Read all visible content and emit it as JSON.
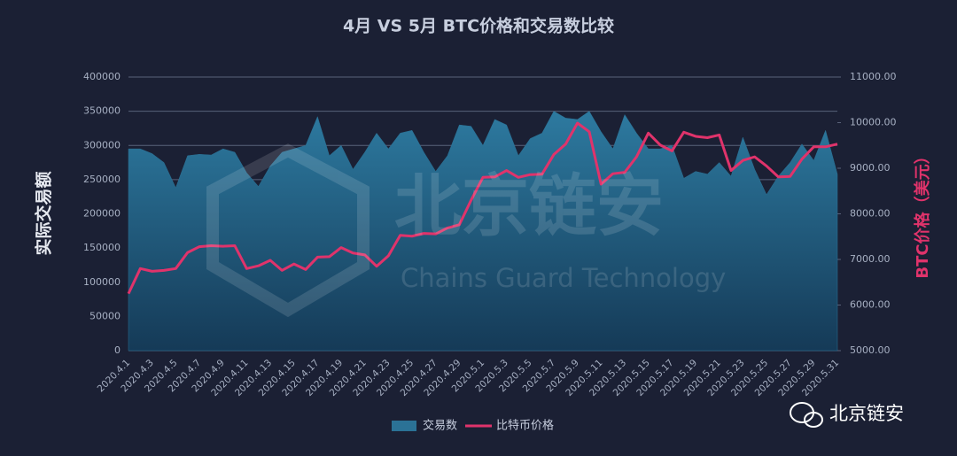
{
  "chart_data": {
    "type": "combo",
    "title": "4月 VS 5月 BTC价格和交易数比较",
    "y_label": "实际交易额",
    "y2_label": "BTC价格（美元）",
    "categories": [
      "2020.4.1",
      null,
      "2020.4.3",
      null,
      "2020.4.5",
      null,
      "2020.4.7",
      null,
      "2020.4.9",
      null,
      "2020.4.11",
      null,
      "2020.4.13",
      null,
      "2020.4.15",
      null,
      "2020.4.17",
      null,
      "2020.4.19",
      null,
      "2020.4.21",
      null,
      "2020.4.23",
      null,
      "2020.4.25",
      null,
      "2020.4.27",
      null,
      "2020.4.29",
      null,
      "2020.5.1",
      null,
      "2020.5.3",
      null,
      "2020.5.5",
      null,
      "2020.5.7",
      null,
      "2020.5.9",
      null,
      "2020.5.11",
      null,
      "2020.5.13",
      null,
      "2020.5.15",
      null,
      "2020.5.17",
      null,
      "2020.5.19",
      null,
      "2020.5.21",
      null,
      "2020.5.23",
      null,
      "2020.5.25",
      null,
      "2020.5.27",
      null,
      "2020.5.29",
      null,
      "2020.5.31"
    ],
    "series": [
      {
        "name": "交易数",
        "type": "area",
        "color": "#2b7296",
        "values": [
          295000,
          295000,
          288000,
          275000,
          238000,
          285000,
          287000,
          286000,
          295000,
          290000,
          260000,
          240000,
          270000,
          290000,
          295000,
          300000,
          342000,
          285000,
          300000,
          265000,
          290000,
          318000,
          295000,
          318000,
          322000,
          290000,
          262000,
          285000,
          330000,
          328000,
          300000,
          338000,
          330000,
          285000,
          310000,
          318000,
          350000,
          340000,
          338000,
          350000,
          320000,
          295000,
          345000,
          318000,
          295000,
          295000,
          300000,
          252000,
          262000,
          258000,
          275000,
          255000,
          312000,
          265000,
          228000,
          255000,
          275000,
          302000,
          278000,
          322000,
          258000
        ]
      },
      {
        "name": "比特币价格",
        "type": "line",
        "axis": "y2",
        "color": "#e0336b",
        "values": [
          6250,
          6800,
          6740,
          6760,
          6800,
          7150,
          7280,
          7300,
          7290,
          7300,
          6800,
          6860,
          6980,
          6760,
          6900,
          6780,
          7050,
          7060,
          7260,
          7140,
          7100,
          6850,
          7080,
          7530,
          7510,
          7570,
          7560,
          7690,
          7760,
          8300,
          8800,
          8810,
          8950,
          8800,
          8860,
          8870,
          9300,
          9530,
          9990,
          9800,
          8650,
          8880,
          8910,
          9250,
          9770,
          9510,
          9380,
          9790,
          9700,
          9670,
          9730,
          8950,
          9170,
          9250,
          9050,
          8810,
          8820,
          9200,
          9470,
          9470,
          9530
        ]
      }
    ],
    "ylim": [
      0,
      400000
    ],
    "yticks": [
      0,
      50000,
      100000,
      150000,
      200000,
      250000,
      300000,
      350000,
      400000
    ],
    "y2lim": [
      5000,
      11000
    ],
    "y2ticks": [
      {
        "value": 5000,
        "label": "5000.00"
      },
      {
        "value": 6000,
        "label": "6000.00"
      },
      {
        "value": 7000,
        "label": "7000.00"
      },
      {
        "value": 8000,
        "label": "8000.00"
      },
      {
        "value": 9000,
        "label": "9000.00"
      },
      {
        "value": 10000,
        "label": "10000.00"
      },
      {
        "value": 11000,
        "label": "11000.00"
      }
    ],
    "grid": true,
    "legend": "bottom"
  },
  "watermark": {
    "title": "北京链安",
    "subtitle": "Chains Guard Technology"
  },
  "footer_label": "北京链安"
}
